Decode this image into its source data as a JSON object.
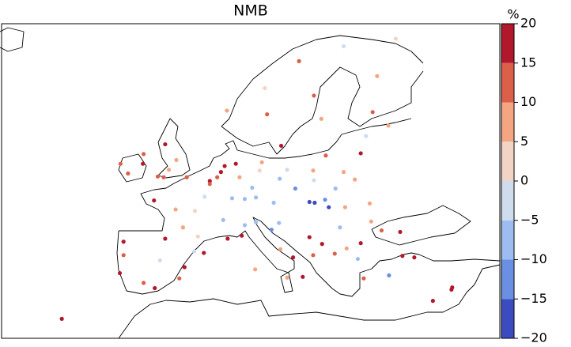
{
  "chart_data": {
    "type": "map",
    "title": "NMB",
    "xlim": [
      -25,
      42
    ],
    "ylim": [
      30,
      72
    ],
    "colorbar": {
      "label": "%",
      "lim": [
        -20,
        20
      ],
      "ticks": [
        {
          "value": -20,
          "label": "−20"
        },
        {
          "value": -15,
          "label": "−15"
        },
        {
          "value": -10,
          "label": "−10"
        },
        {
          "value": -5,
          "label": "−5"
        },
        0,
        5,
        10,
        15,
        20
      ],
      "colors": [
        "#3b4cc0",
        "#6a8fe3",
        "#9dbdf2",
        "#cfdcee",
        "#f2d4c6",
        "#f4a582",
        "#dc5f4a",
        "#b2182b"
      ]
    },
    "stations": [
      {
        "lon": 4.5,
        "lat": 52.2,
        "value": 18
      },
      {
        "lon": 5,
        "lat": 53,
        "value": 17
      },
      {
        "lon": 6.5,
        "lat": 53.3,
        "value": 16
      },
      {
        "lon": 4,
        "lat": 51.5,
        "value": 14
      },
      {
        "lon": 3,
        "lat": 51,
        "value": 16
      },
      {
        "lon": -0.1,
        "lat": 51.5,
        "value": 12
      },
      {
        "lon": -3,
        "lat": 55.9,
        "value": 18
      },
      {
        "lon": -1.5,
        "lat": 53.8,
        "value": 9
      },
      {
        "lon": -2.5,
        "lat": 52.5,
        "value": 8
      },
      {
        "lon": -4,
        "lat": 51.6,
        "value": 11
      },
      {
        "lon": -6,
        "lat": 53.3,
        "value": 16
      },
      {
        "lon": -8,
        "lat": 52,
        "value": 12
      },
      {
        "lon": -9,
        "lat": 53.3,
        "value": 14
      },
      {
        "lon": -5.9,
        "lat": 54.6,
        "value": 10
      },
      {
        "lon": -3.2,
        "lat": 51.5,
        "value": 13
      },
      {
        "lon": 2.3,
        "lat": 48.9,
        "value": -3
      },
      {
        "lon": 4.8,
        "lat": 45.8,
        "value": -6
      },
      {
        "lon": 1,
        "lat": 47,
        "value": 4
      },
      {
        "lon": -1.6,
        "lat": 47.2,
        "value": 8
      },
      {
        "lon": -0.6,
        "lat": 44.8,
        "value": 7
      },
      {
        "lon": 5.4,
        "lat": 43.3,
        "value": 17
      },
      {
        "lon": 7.3,
        "lat": 43.7,
        "value": 15
      },
      {
        "lon": 3,
        "lat": 50.6,
        "value": 12
      },
      {
        "lon": 6,
        "lat": 48.7,
        "value": -7
      },
      {
        "lon": 7.7,
        "lat": 48.6,
        "value": -9
      },
      {
        "lon": 1.4,
        "lat": 43.6,
        "value": 3
      },
      {
        "lon": -4.5,
        "lat": 48.4,
        "value": 19
      },
      {
        "lon": 13.4,
        "lat": 52.5,
        "value": -4
      },
      {
        "lon": 10,
        "lat": 53.5,
        "value": 9
      },
      {
        "lon": 8.7,
        "lat": 50.1,
        "value": -6
      },
      {
        "lon": 11.6,
        "lat": 48.1,
        "value": -8
      },
      {
        "lon": 7,
        "lat": 51.5,
        "value": 6
      },
      {
        "lon": 12.4,
        "lat": 51.3,
        "value": -10
      },
      {
        "lon": 9.2,
        "lat": 48.8,
        "value": -7
      },
      {
        "lon": 9.7,
        "lat": 52.4,
        "value": 3
      },
      {
        "lon": 14.5,
        "lat": 50,
        "value": -12
      },
      {
        "lon": 16.4,
        "lat": 48.2,
        "value": -17
      },
      {
        "lon": 17.1,
        "lat": 48.1,
        "value": -18
      },
      {
        "lon": 19,
        "lat": 47.5,
        "value": -16
      },
      {
        "lon": 18.5,
        "lat": 48.5,
        "value": -11
      },
      {
        "lon": 21,
        "lat": 52.2,
        "value": 7
      },
      {
        "lon": 19.9,
        "lat": 50,
        "value": -6
      },
      {
        "lon": 17,
        "lat": 51.1,
        "value": -3
      },
      {
        "lon": 18.6,
        "lat": 54.4,
        "value": 12
      },
      {
        "lon": 16.9,
        "lat": 52.4,
        "value": 6
      },
      {
        "lon": 22.5,
        "lat": 51.2,
        "value": 9
      },
      {
        "lon": 9.2,
        "lat": 45.5,
        "value": -9
      },
      {
        "lon": 11.3,
        "lat": 44.5,
        "value": -13
      },
      {
        "lon": 12.3,
        "lat": 45.4,
        "value": -8
      },
      {
        "lon": 7.7,
        "lat": 45.1,
        "value": -6
      },
      {
        "lon": 12.5,
        "lat": 41.9,
        "value": 9
      },
      {
        "lon": 14.2,
        "lat": 40.8,
        "value": 17
      },
      {
        "lon": 15.5,
        "lat": 38.2,
        "value": 18
      },
      {
        "lon": 16.9,
        "lat": 41.1,
        "value": 12
      },
      {
        "lon": 13.4,
        "lat": 38.1,
        "value": 7
      },
      {
        "lon": 9.1,
        "lat": 39.2,
        "value": 8
      },
      {
        "lon": -3.7,
        "lat": 40.4,
        "value": -5
      },
      {
        "lon": 2.2,
        "lat": 41.4,
        "value": 16
      },
      {
        "lon": -0.4,
        "lat": 39.5,
        "value": 15
      },
      {
        "lon": -5.9,
        "lat": 37.4,
        "value": 12
      },
      {
        "lon": -8.6,
        "lat": 42.9,
        "value": 18
      },
      {
        "lon": -9.1,
        "lat": 38.7,
        "value": 17
      },
      {
        "lon": -8.6,
        "lat": 41.1,
        "value": 14
      },
      {
        "lon": -4.4,
        "lat": 36.7,
        "value": 19
      },
      {
        "lon": -1.1,
        "lat": 38,
        "value": 11
      },
      {
        "lon": -3,
        "lat": 43.3,
        "value": 19
      },
      {
        "lon": 0.9,
        "lat": 41.6,
        "value": -4
      },
      {
        "lon": 10.7,
        "lat": 59.9,
        "value": 14
      },
      {
        "lon": 18,
        "lat": 59.3,
        "value": 7
      },
      {
        "lon": 24.9,
        "lat": 60.2,
        "value": 10
      },
      {
        "lon": 12.6,
        "lat": 55.7,
        "value": 17
      },
      {
        "lon": 5.3,
        "lat": 60.4,
        "value": 6
      },
      {
        "lon": 10.4,
        "lat": 63.4,
        "value": 3
      },
      {
        "lon": 25.5,
        "lat": 65,
        "value": 8
      },
      {
        "lon": 21,
        "lat": 69,
        "value": -3
      },
      {
        "lon": 28,
        "lat": 70,
        "value": 4
      },
      {
        "lon": 15,
        "lat": 67,
        "value": 10
      },
      {
        "lon": 24,
        "lat": 57,
        "value": -4
      },
      {
        "lon": 27,
        "lat": 58.4,
        "value": 6
      },
      {
        "lon": 23.3,
        "lat": 54.7,
        "value": 17
      },
      {
        "lon": 17,
        "lat": 62.4,
        "value": 11
      },
      {
        "lon": 26.1,
        "lat": 44.4,
        "value": 13
      },
      {
        "lon": 23.3,
        "lat": 42.7,
        "value": 15
      },
      {
        "lon": 20.5,
        "lat": 44.8,
        "value": -6
      },
      {
        "lon": 21.4,
        "lat": 42,
        "value": 9
      },
      {
        "lon": 23.7,
        "lat": 38,
        "value": 13
      },
      {
        "lon": 22.9,
        "lat": 40.6,
        "value": -9
      },
      {
        "lon": 28.9,
        "lat": 41,
        "value": 18
      },
      {
        "lon": 30.5,
        "lat": 40.8,
        "value": 17
      },
      {
        "lon": 27.1,
        "lat": 38.4,
        "value": -12
      },
      {
        "lon": 33,
        "lat": 35,
        "value": 19
      },
      {
        "lon": 35.5,
        "lat": 36.5,
        "value": 18
      },
      {
        "lon": 35.6,
        "lat": 36.8,
        "value": 17
      },
      {
        "lon": 24.7,
        "lat": 45.6,
        "value": 9
      },
      {
        "lon": 28.6,
        "lat": 44.2,
        "value": 16
      },
      {
        "lon": 16.4,
        "lat": 43.5,
        "value": 15
      },
      {
        "lon": 18.1,
        "lat": 42.6,
        "value": 17
      },
      {
        "lon": 19.8,
        "lat": 41.3,
        "value": 12
      },
      {
        "lon": 24.5,
        "lat": 48,
        "value": 6
      },
      {
        "lon": 21.2,
        "lat": 47.5,
        "value": 5
      },
      {
        "lon": -16.9,
        "lat": 32.6,
        "value": 19
      }
    ]
  }
}
